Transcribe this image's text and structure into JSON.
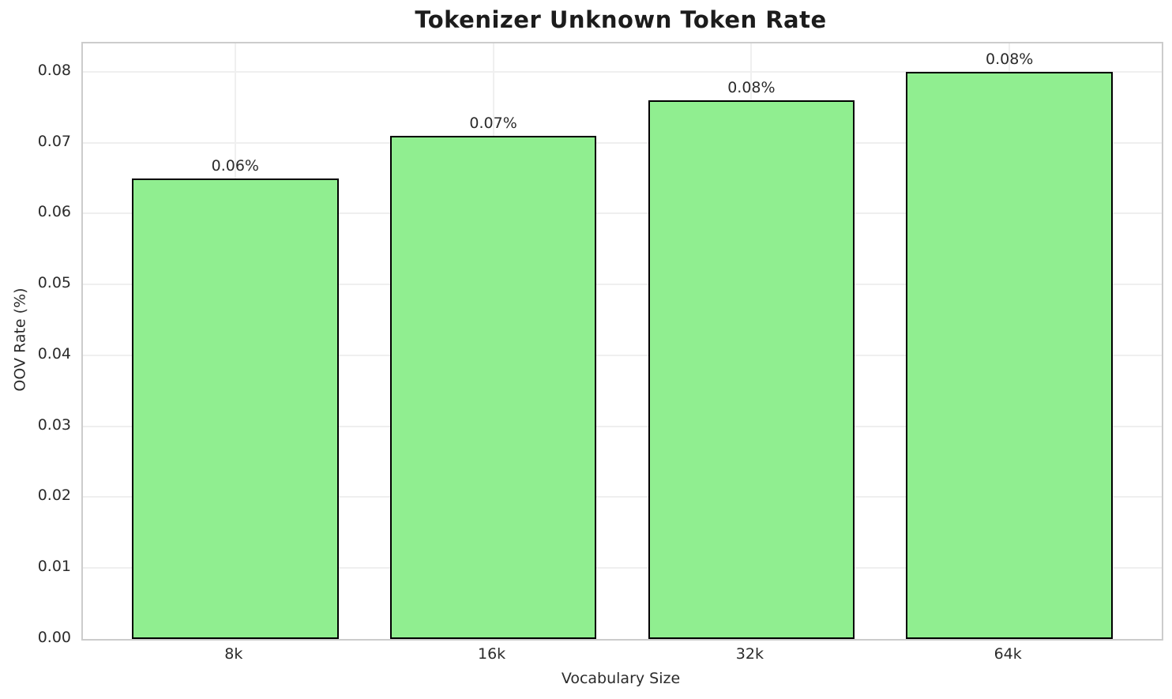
{
  "chart_data": {
    "type": "bar",
    "title": "Tokenizer Unknown Token Rate",
    "xlabel": "Vocabulary Size",
    "ylabel": "OOV Rate (%)",
    "categories": [
      "8k",
      "16k",
      "32k",
      "64k"
    ],
    "values": [
      0.065,
      0.071,
      0.076,
      0.08
    ],
    "bar_labels": [
      "0.06%",
      "0.07%",
      "0.08%",
      "0.08%"
    ],
    "yticks": [
      0.0,
      0.01,
      0.02,
      0.03,
      0.04,
      0.05,
      0.06,
      0.07,
      0.08
    ],
    "ytick_labels": [
      "0.00",
      "0.01",
      "0.02",
      "0.03",
      "0.04",
      "0.05",
      "0.06",
      "0.07",
      "0.08"
    ],
    "ylim": [
      0,
      0.084
    ],
    "grid": true,
    "legend": "none",
    "colors": {
      "bar_fill": "#90EE90",
      "bar_edge": "#000000",
      "grid": "#efefef",
      "spine": "#cccccc",
      "title_text": "#1c1c1c",
      "axis_text": "#2b2b2b"
    }
  }
}
